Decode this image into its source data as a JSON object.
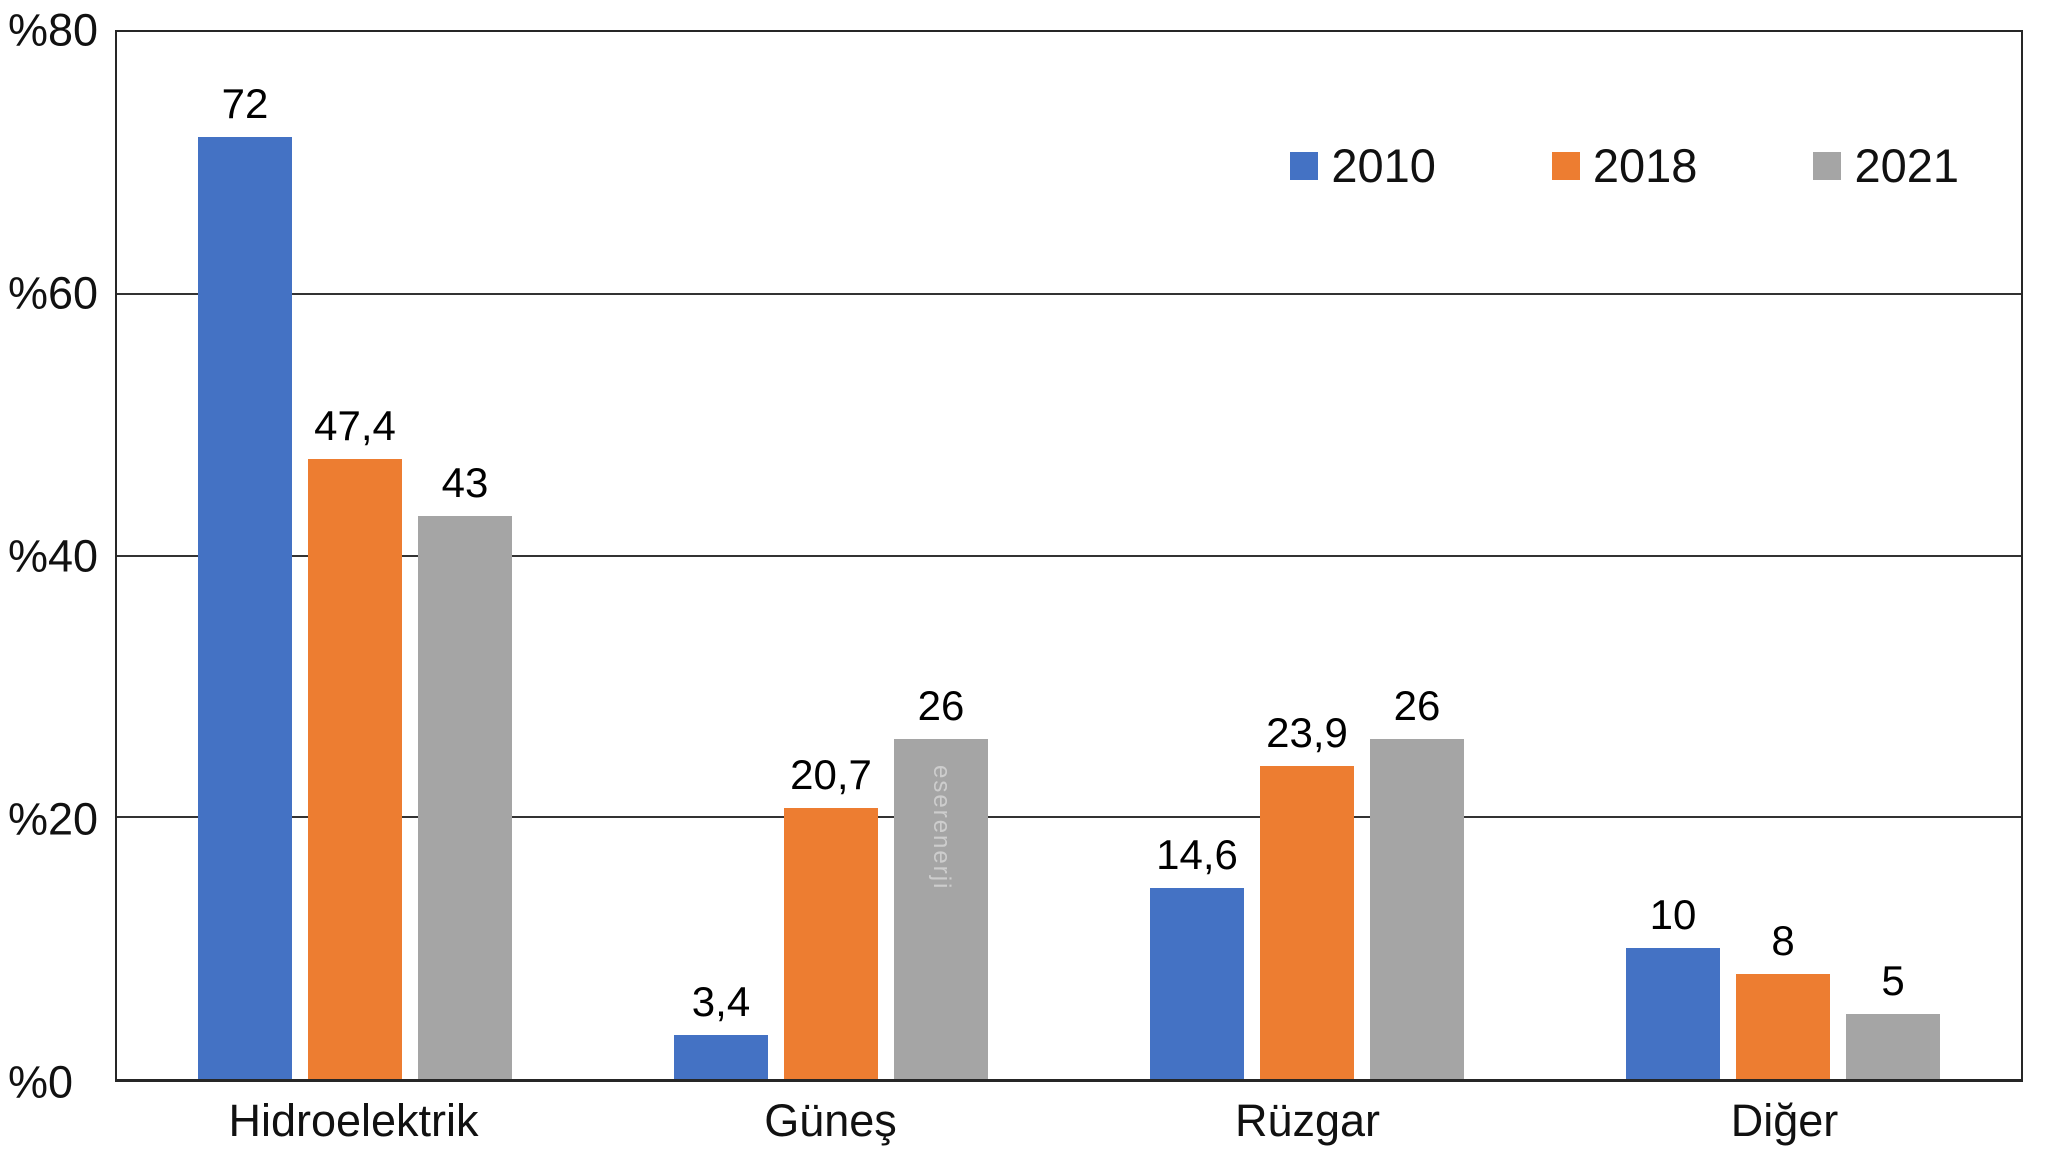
{
  "chart_data": {
    "type": "bar",
    "categories": [
      "Hidroelektrik",
      "Güneş",
      "Rüzgar",
      "Diğer"
    ],
    "series": [
      {
        "name": "2010",
        "color": "#4472C4",
        "values": [
          72,
          3.4,
          14.6,
          10
        ],
        "value_labels": [
          "72",
          "3,4",
          "14,6",
          "10"
        ]
      },
      {
        "name": "2018",
        "color": "#ED7D31",
        "values": [
          47.4,
          20.7,
          23.9,
          8
        ],
        "value_labels": [
          "47,4",
          "20,7",
          "23,9",
          "8"
        ]
      },
      {
        "name": "2021",
        "color": "#A5A5A5",
        "values": [
          43,
          26,
          26,
          5
        ],
        "value_labels": [
          "43",
          "26",
          "26",
          "5"
        ]
      }
    ],
    "title": "",
    "xlabel": "",
    "ylabel": "",
    "ylim": [
      0,
      80
    ],
    "y_tick_labels": [
      "%80",
      "%60",
      "%40",
      "%20",
      "%0"
    ],
    "grid": true,
    "legend_position": "top-right"
  },
  "watermark": {
    "text": "eserenerji",
    "series": "2021",
    "category": "Güneş"
  },
  "colors": {
    "grid_line": "#333333",
    "plot_border": "#262626",
    "text": "#111111",
    "background": "#ffffff"
  }
}
